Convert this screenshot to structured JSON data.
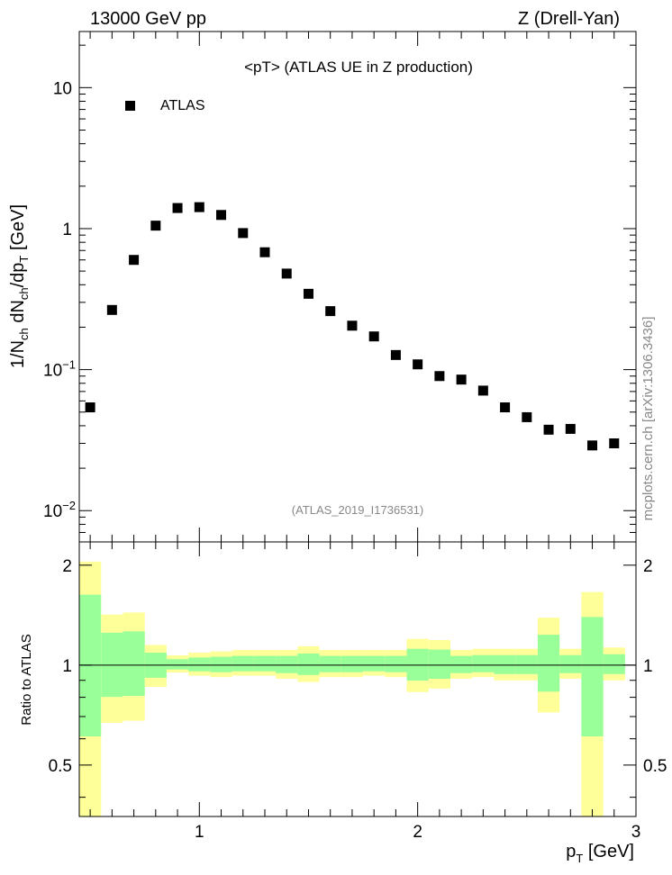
{
  "header": {
    "left": "13000 GeV pp",
    "right": "Z (Drell-Yan)"
  },
  "watermark": "mcplots.cern.ch [arXiv:1306.3436]",
  "chart_data": [
    {
      "type": "scatter",
      "title": "<pT> (ATLAS UE in Z production)",
      "analysis_label": "(ATLAS_2019_I1736531)",
      "ylabel": {
        "main": "1/N",
        "sub1": "ch",
        "mid": " dN",
        "sub2": "ch",
        "tail": "/dp",
        "sub3": "T",
        "unit": " [GeV]"
      },
      "yscale": "log",
      "ylim": [
        0.006,
        25
      ],
      "xlim": [
        0.45,
        3.0
      ],
      "legend": {
        "position": "top-left",
        "entries": [
          {
            "name": "ATLAS",
            "marker": "square",
            "color": "#000000"
          }
        ]
      },
      "y_ticks": [
        {
          "value": 10,
          "base": "10",
          "exp": ""
        },
        {
          "value": 1,
          "base": "1",
          "exp": ""
        },
        {
          "value": 0.1,
          "base": "10",
          "exp": "−1"
        },
        {
          "value": 0.01,
          "base": "10",
          "exp": "−2"
        }
      ],
      "series": [
        {
          "name": "ATLAS",
          "x": [
            0.5,
            0.6,
            0.7,
            0.8,
            0.9,
            1.0,
            1.1,
            1.2,
            1.3,
            1.4,
            1.5,
            1.6,
            1.7,
            1.8,
            1.9,
            2.0,
            2.1,
            2.2,
            2.3,
            2.4,
            2.5,
            2.6,
            2.7,
            2.8,
            2.9
          ],
          "y": [
            0.054,
            0.265,
            0.6,
            1.05,
            1.4,
            1.42,
            1.25,
            0.93,
            0.68,
            0.48,
            0.345,
            0.26,
            0.205,
            0.172,
            0.127,
            0.109,
            0.09,
            0.085,
            0.071,
            0.054,
            0.046,
            0.0375,
            0.038,
            0.029,
            0.03
          ]
        }
      ]
    },
    {
      "type": "area",
      "ylabel": "Ratio to ATLAS",
      "xlabel": {
        "main": "p",
        "sub": "T",
        "unit": " [GeV]"
      },
      "ylim": [
        0.35,
        2.35
      ],
      "xlim": [
        0.45,
        3.0
      ],
      "y_ticks": [
        "0.5",
        "1",
        "2"
      ],
      "x_ticks": [
        "1",
        "2",
        "3"
      ],
      "reference_line": 1,
      "bin_edges": [
        0.45,
        0.55,
        0.65,
        0.75,
        0.85,
        0.95,
        1.05,
        1.15,
        1.25,
        1.35,
        1.45,
        1.55,
        1.65,
        1.75,
        1.85,
        1.95,
        2.05,
        2.15,
        2.25,
        2.35,
        2.45,
        2.55,
        2.65,
        2.75,
        2.85,
        2.95
      ],
      "bands": {
        "outer_color": "#ffff99",
        "inner_color": "#99ff99",
        "yellow_low": [
          0.35,
          0.67,
          0.68,
          0.86,
          0.95,
          0.93,
          0.92,
          0.93,
          0.93,
          0.91,
          0.89,
          0.92,
          0.92,
          0.93,
          0.92,
          0.83,
          0.85,
          0.91,
          0.92,
          0.9,
          0.9,
          0.72,
          0.91,
          0.35,
          0.9
        ],
        "yellow_high": [
          2.05,
          1.42,
          1.44,
          1.15,
          1.07,
          1.09,
          1.1,
          1.11,
          1.11,
          1.11,
          1.14,
          1.11,
          1.11,
          1.11,
          1.11,
          1.2,
          1.19,
          1.11,
          1.12,
          1.12,
          1.12,
          1.39,
          1.12,
          1.66,
          1.13
        ]
      }
    }
  ]
}
